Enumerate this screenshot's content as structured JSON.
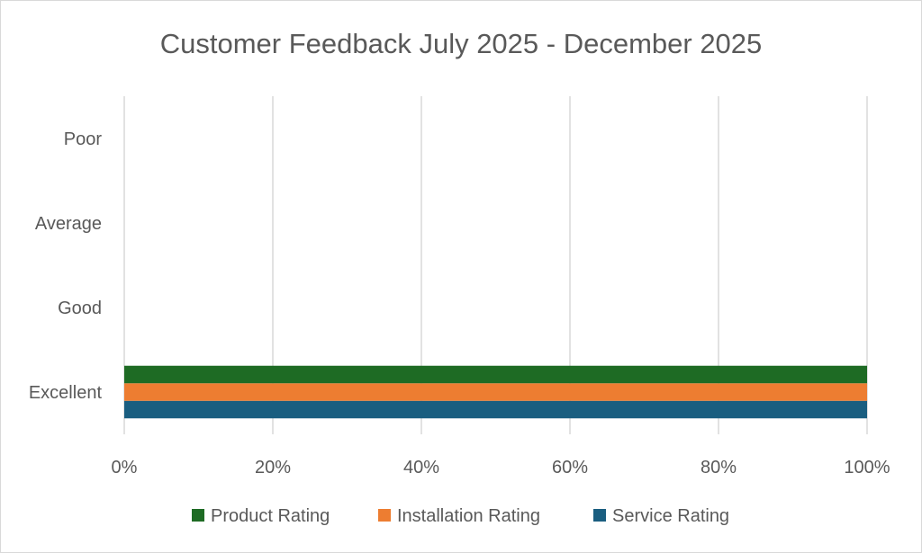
{
  "chart_data": {
    "type": "bar",
    "orientation": "horizontal",
    "stacking": "percent",
    "title": "Customer Feedback July 2025 - December 2025",
    "categories": [
      "Excellent",
      "Good",
      "Average",
      "Poor"
    ],
    "xlim": [
      0,
      100
    ],
    "x_ticks": [
      "0%",
      "20%",
      "40%",
      "60%",
      "80%",
      "100%"
    ],
    "grid": "vertical",
    "legend_position": "bottom",
    "series": [
      {
        "name": "Service Rating",
        "values": [
          100,
          0,
          0,
          0
        ],
        "color": "#1a5e80"
      },
      {
        "name": "Installation Rating",
        "values": [
          100,
          0,
          0,
          0
        ],
        "color": "#ed7d31"
      },
      {
        "name": "Product Rating",
        "values": [
          100,
          0,
          0,
          0
        ],
        "color": "#1e6b24"
      }
    ],
    "legend_order": [
      "Product Rating",
      "Installation Rating",
      "Service Rating"
    ]
  }
}
